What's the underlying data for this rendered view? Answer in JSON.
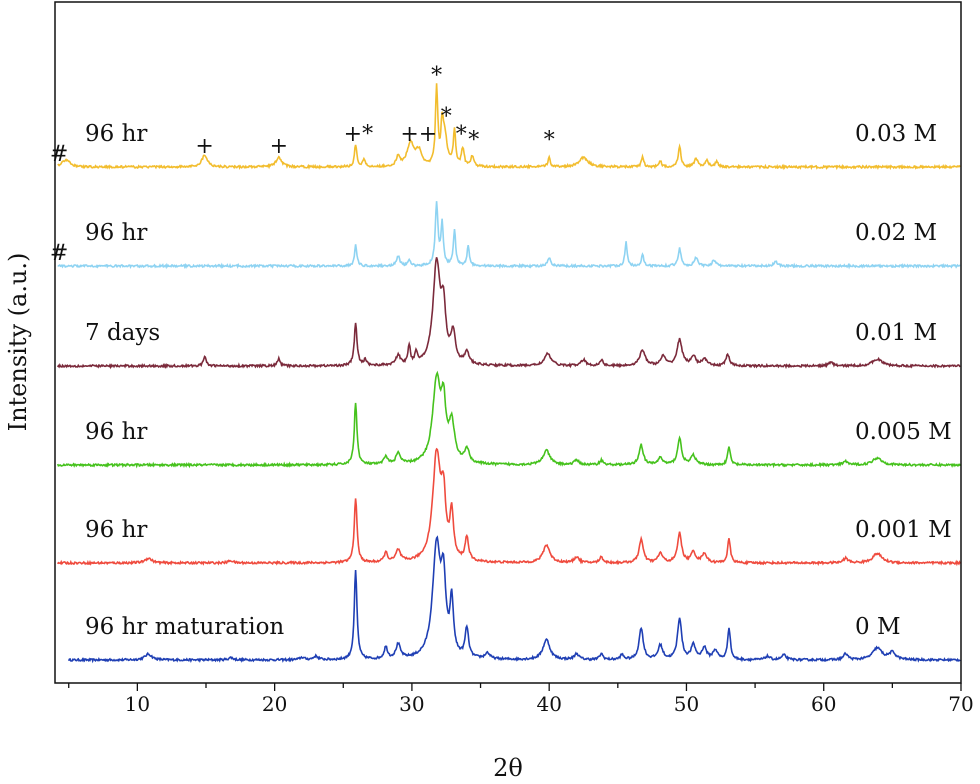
{
  "chart_data": {
    "type": "line",
    "title": "",
    "xlabel": "2θ",
    "ylabel": "Intensity (a.u.)",
    "xlim": [
      4,
      70
    ],
    "xticks": [
      "10",
      "20",
      "30",
      "40",
      "50",
      "60",
      "70"
    ],
    "grid": false,
    "series": [
      {
        "name": "0 M",
        "label": "96 hr maturation",
        "concentration": "0 M",
        "color": "#1f3fb4",
        "baseline": 0,
        "peaks": [
          [
            10.8,
            0.05,
            0.3
          ],
          [
            16.8,
            0.02,
            0.2
          ],
          [
            22.0,
            0.02,
            0.2
          ],
          [
            23.0,
            0.03,
            0.2
          ],
          [
            25.9,
            0.75,
            0.12
          ],
          [
            28.1,
            0.1,
            0.15
          ],
          [
            29.0,
            0.12,
            0.2
          ],
          [
            31.8,
            0.95,
            0.35
          ],
          [
            32.3,
            0.55,
            0.2
          ],
          [
            32.9,
            0.45,
            0.15
          ],
          [
            34.0,
            0.25,
            0.15
          ],
          [
            35.5,
            0.05,
            0.2
          ],
          [
            39.8,
            0.17,
            0.3
          ],
          [
            42.0,
            0.05,
            0.2
          ],
          [
            43.8,
            0.05,
            0.15
          ],
          [
            45.3,
            0.04,
            0.15
          ],
          [
            46.7,
            0.27,
            0.18
          ],
          [
            48.1,
            0.12,
            0.2
          ],
          [
            49.5,
            0.35,
            0.18
          ],
          [
            50.5,
            0.12,
            0.2
          ],
          [
            51.3,
            0.1,
            0.2
          ],
          [
            52.1,
            0.08,
            0.2
          ],
          [
            53.1,
            0.27,
            0.12
          ],
          [
            55.9,
            0.03,
            0.2
          ],
          [
            57.1,
            0.04,
            0.2
          ],
          [
            61.6,
            0.05,
            0.2
          ],
          [
            63.9,
            0.1,
            0.4
          ],
          [
            65.0,
            0.06,
            0.3
          ]
        ]
      },
      {
        "name": "0.001 M",
        "label": "96 hr",
        "concentration": "0.001 M",
        "color": "#ef4b3e",
        "baseline": 1,
        "peaks": [
          [
            10.8,
            0.04,
            0.3
          ],
          [
            16.8,
            0.02,
            0.2
          ],
          [
            25.9,
            0.55,
            0.12
          ],
          [
            28.1,
            0.08,
            0.15
          ],
          [
            29.0,
            0.1,
            0.2
          ],
          [
            31.8,
            0.9,
            0.35
          ],
          [
            32.3,
            0.45,
            0.2
          ],
          [
            32.9,
            0.38,
            0.15
          ],
          [
            34.0,
            0.2,
            0.15
          ],
          [
            39.8,
            0.15,
            0.3
          ],
          [
            42.0,
            0.05,
            0.2
          ],
          [
            43.8,
            0.05,
            0.15
          ],
          [
            46.7,
            0.2,
            0.18
          ],
          [
            48.1,
            0.08,
            0.2
          ],
          [
            49.5,
            0.25,
            0.18
          ],
          [
            50.5,
            0.09,
            0.2
          ],
          [
            51.3,
            0.08,
            0.2
          ],
          [
            53.1,
            0.2,
            0.12
          ],
          [
            61.6,
            0.04,
            0.2
          ],
          [
            63.9,
            0.08,
            0.4
          ]
        ]
      },
      {
        "name": "0.005 M",
        "label": "96 hr",
        "concentration": "0.005 M",
        "color": "#46c21d",
        "baseline": 2,
        "peaks": [
          [
            25.9,
            0.52,
            0.12
          ],
          [
            28.1,
            0.07,
            0.15
          ],
          [
            29.0,
            0.09,
            0.2
          ],
          [
            31.8,
            0.7,
            0.35
          ],
          [
            32.3,
            0.42,
            0.2
          ],
          [
            32.9,
            0.32,
            0.25
          ],
          [
            34.0,
            0.12,
            0.2
          ],
          [
            39.8,
            0.12,
            0.3
          ],
          [
            42.0,
            0.04,
            0.2
          ],
          [
            43.8,
            0.04,
            0.15
          ],
          [
            46.7,
            0.17,
            0.18
          ],
          [
            48.1,
            0.06,
            0.2
          ],
          [
            49.5,
            0.22,
            0.18
          ],
          [
            50.5,
            0.08,
            0.2
          ],
          [
            53.1,
            0.15,
            0.12
          ],
          [
            61.6,
            0.03,
            0.2
          ],
          [
            63.9,
            0.06,
            0.4
          ]
        ]
      },
      {
        "name": "0.01 M",
        "label": "7 days",
        "concentration": "0.01 M",
        "color": "#7b2a3b",
        "baseline": 3,
        "peaks": [
          [
            14.9,
            0.08,
            0.12
          ],
          [
            20.3,
            0.06,
            0.12
          ],
          [
            25.9,
            0.36,
            0.12
          ],
          [
            26.6,
            0.05,
            0.12
          ],
          [
            29.0,
            0.08,
            0.2
          ],
          [
            29.8,
            0.16,
            0.1
          ],
          [
            30.3,
            0.1,
            0.1
          ],
          [
            31.8,
            0.85,
            0.32
          ],
          [
            32.3,
            0.4,
            0.2
          ],
          [
            33.0,
            0.25,
            0.2
          ],
          [
            34.0,
            0.1,
            0.2
          ],
          [
            39.9,
            0.1,
            0.3
          ],
          [
            42.5,
            0.05,
            0.2
          ],
          [
            43.8,
            0.05,
            0.15
          ],
          [
            46.8,
            0.13,
            0.25
          ],
          [
            48.3,
            0.08,
            0.2
          ],
          [
            49.5,
            0.22,
            0.22
          ],
          [
            50.5,
            0.08,
            0.2
          ],
          [
            51.3,
            0.06,
            0.2
          ],
          [
            53.0,
            0.1,
            0.15
          ],
          [
            60.5,
            0.03,
            0.2
          ],
          [
            63.9,
            0.06,
            0.4
          ]
        ]
      },
      {
        "name": "0.02 M",
        "label": "96 hr",
        "concentration": "0.02 M",
        "color": "#8ed3f2",
        "baseline": 4,
        "peaks": [
          [
            25.9,
            0.18,
            0.1
          ],
          [
            29.0,
            0.08,
            0.15
          ],
          [
            29.8,
            0.05,
            0.1
          ],
          [
            31.8,
            0.52,
            0.12
          ],
          [
            32.2,
            0.35,
            0.1
          ],
          [
            33.1,
            0.3,
            0.1
          ],
          [
            34.1,
            0.17,
            0.1
          ],
          [
            40.0,
            0.07,
            0.12
          ],
          [
            45.6,
            0.2,
            0.1
          ],
          [
            46.8,
            0.1,
            0.1
          ],
          [
            49.5,
            0.15,
            0.12
          ],
          [
            50.7,
            0.07,
            0.15
          ],
          [
            52.0,
            0.05,
            0.15
          ],
          [
            56.5,
            0.04,
            0.15
          ]
        ]
      },
      {
        "name": "0.03 M",
        "label": "96 hr",
        "concentration": "0.03 M",
        "color": "#f2bd2e",
        "baseline": 5,
        "peaks": [
          [
            4.8,
            0.06,
            0.35
          ],
          [
            14.9,
            0.1,
            0.25
          ],
          [
            20.3,
            0.08,
            0.25
          ],
          [
            25.9,
            0.19,
            0.1
          ],
          [
            26.5,
            0.06,
            0.12
          ],
          [
            29.0,
            0.08,
            0.15
          ],
          [
            29.9,
            0.2,
            0.3
          ],
          [
            30.5,
            0.12,
            0.25
          ],
          [
            31.8,
            0.65,
            0.1
          ],
          [
            32.2,
            0.3,
            0.1
          ],
          [
            32.4,
            0.25,
            0.2
          ],
          [
            33.1,
            0.3,
            0.1
          ],
          [
            33.7,
            0.15,
            0.12
          ],
          [
            34.4,
            0.09,
            0.12
          ],
          [
            40.0,
            0.08,
            0.1
          ],
          [
            42.5,
            0.08,
            0.4
          ],
          [
            46.8,
            0.09,
            0.1
          ],
          [
            48.1,
            0.05,
            0.1
          ],
          [
            49.5,
            0.17,
            0.12
          ],
          [
            50.7,
            0.07,
            0.15
          ],
          [
            51.5,
            0.06,
            0.12
          ],
          [
            52.2,
            0.05,
            0.12
          ]
        ]
      }
    ],
    "annotations": [
      {
        "text": "#",
        "series": "0.03 M",
        "x": 4.3
      },
      {
        "text": "#",
        "series": "0.02 M",
        "x": 4.3
      },
      {
        "text": "+",
        "series": "0.03 M",
        "x": 14.9
      },
      {
        "text": "+",
        "series": "0.03 M",
        "x": 20.3
      },
      {
        "text": "+*",
        "series": "0.03 M",
        "x": 26.1
      },
      {
        "text": "++",
        "series": "0.03 M",
        "x": 30.5
      },
      {
        "text": "*",
        "series": "0.03 M",
        "x": 31.8
      },
      {
        "text": "*",
        "series": "0.03 M",
        "x": 32.5
      },
      {
        "text": "*",
        "series": "0.03 M",
        "x": 33.6
      },
      {
        "text": "*",
        "series": "0.03 M",
        "x": 34.5
      },
      {
        "text": "*",
        "series": "0.03 M",
        "x": 40.0
      }
    ]
  }
}
